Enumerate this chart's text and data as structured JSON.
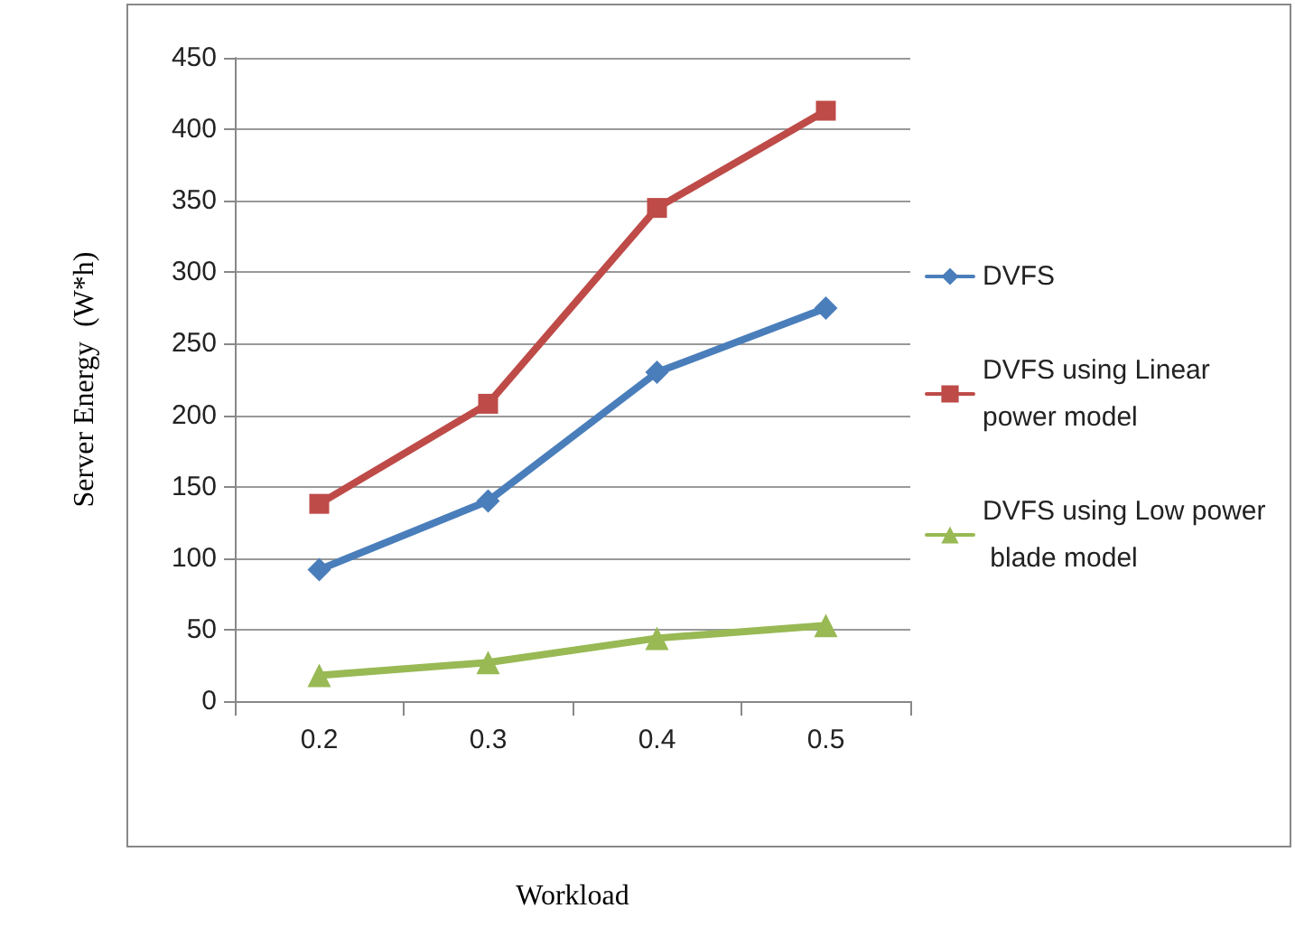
{
  "chart_data": {
    "type": "line",
    "xlabel": "Workload",
    "ylabel": "Server Energy  (W*h)",
    "categories": [
      "0.2",
      "0.3",
      "0.4",
      "0.5"
    ],
    "series": [
      {
        "name": "DVFS",
        "color": "#4a7ebb",
        "marker": "diamond",
        "values": [
          92,
          140,
          230,
          275
        ]
      },
      {
        "name": "DVFS using Linear power model",
        "color": "#be4b48",
        "marker": "square",
        "values": [
          138,
          208,
          345,
          413
        ]
      },
      {
        "name": "DVFS using Low power blade model",
        "color": "#98b954",
        "marker": "triangle",
        "values": [
          18,
          27,
          44,
          53
        ]
      }
    ],
    "ylim": [
      0,
      450
    ],
    "yticks": [
      0,
      50,
      100,
      150,
      200,
      250,
      300,
      350,
      400,
      450
    ],
    "grid": "y",
    "legend": "right",
    "line_style": "solid"
  }
}
